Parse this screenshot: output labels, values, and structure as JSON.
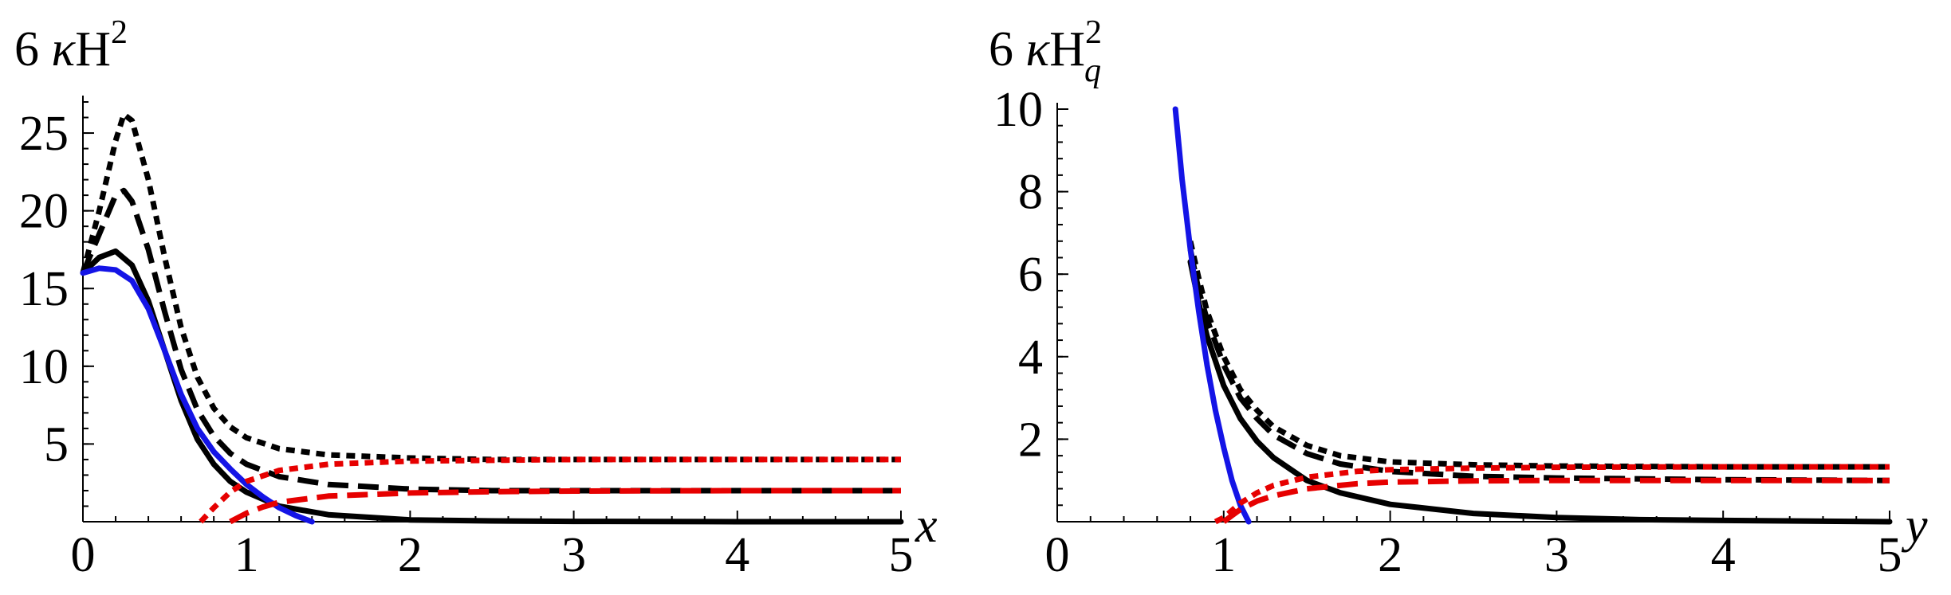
{
  "chart_data": [
    {
      "id": "left",
      "type": "line",
      "title": "",
      "ylabel": {
        "prefix": "6 ",
        "kappa": "κ",
        "main": "H",
        "sup": "2",
        "sub": ""
      },
      "xlabel": "x",
      "xlim": [
        0,
        5
      ],
      "ylim": [
        0,
        27
      ],
      "xticks": [
        "0",
        "1",
        "2",
        "3",
        "4",
        "5"
      ],
      "yticks": [
        "5",
        "10",
        "15",
        "20",
        "25"
      ],
      "series": [
        {
          "style": "solid-black",
          "color": "#000000",
          "x": [
            0,
            0.1,
            0.2,
            0.3,
            0.4,
            0.5,
            0.6,
            0.7,
            0.8,
            0.9,
            1.0,
            1.2,
            1.5,
            2.0,
            2.5,
            3.0,
            3.5,
            4.0,
            5.0
          ],
          "y": [
            16.0,
            17.0,
            17.4,
            16.5,
            14.2,
            11.0,
            7.8,
            5.3,
            3.7,
            2.6,
            1.9,
            1.0,
            0.45,
            0.12,
            0.05,
            0.02,
            0.01,
            0.0,
            0.0
          ]
        },
        {
          "style": "dashed-black",
          "color": "#000000",
          "x": [
            0,
            0.1,
            0.2,
            0.25,
            0.3,
            0.4,
            0.5,
            0.6,
            0.7,
            0.8,
            0.9,
            1.0,
            1.2,
            1.5,
            2.0,
            2.5,
            3.0,
            4.0,
            5.0
          ],
          "y": [
            16.0,
            18.5,
            21.0,
            21.3,
            20.6,
            17.5,
            13.5,
            9.8,
            7.2,
            5.5,
            4.4,
            3.7,
            2.9,
            2.4,
            2.1,
            2.0,
            2.0,
            2.0,
            2.0
          ]
        },
        {
          "style": "dotted-black",
          "color": "#000000",
          "x": [
            0,
            0.1,
            0.2,
            0.25,
            0.3,
            0.4,
            0.5,
            0.6,
            0.7,
            0.8,
            0.9,
            1.0,
            1.2,
            1.5,
            2.0,
            2.5,
            3.0,
            4.0,
            5.0
          ],
          "y": [
            16.0,
            20.0,
            24.5,
            26.2,
            25.8,
            22.0,
            17.0,
            12.5,
            9.3,
            7.3,
            6.1,
            5.4,
            4.7,
            4.3,
            4.1,
            4.0,
            4.0,
            4.0,
            4.0
          ]
        },
        {
          "style": "solid-blue",
          "color": "#1414e6",
          "x": [
            0,
            0.1,
            0.2,
            0.3,
            0.4,
            0.5,
            0.6,
            0.7,
            0.8,
            0.9,
            1.0,
            1.1,
            1.2,
            1.3,
            1.4
          ],
          "y": [
            16.0,
            16.3,
            16.2,
            15.5,
            13.7,
            11.0,
            8.2,
            6.0,
            4.5,
            3.4,
            2.4,
            1.6,
            0.9,
            0.4,
            0.0
          ]
        },
        {
          "style": "dotted-red",
          "color": "#e60000",
          "x": [
            0.72,
            0.8,
            0.9,
            1.0,
            1.2,
            1.5,
            2.0,
            2.5,
            3.0,
            4.0,
            5.0
          ],
          "y": [
            0.0,
            0.9,
            1.9,
            2.6,
            3.3,
            3.7,
            3.9,
            3.95,
            4.0,
            4.0,
            4.0
          ]
        },
        {
          "style": "dashed-red",
          "color": "#e60000",
          "x": [
            0.9,
            1.0,
            1.1,
            1.2,
            1.5,
            2.0,
            2.5,
            3.0,
            4.0,
            5.0
          ],
          "y": [
            0.0,
            0.55,
            0.95,
            1.25,
            1.65,
            1.85,
            1.93,
            1.97,
            2.0,
            2.0
          ]
        }
      ]
    },
    {
      "id": "right",
      "type": "line",
      "title": "",
      "ylabel": {
        "prefix": "6 ",
        "kappa": "κ",
        "main": "H",
        "sup": "2",
        "sub": "q"
      },
      "xlabel": "y",
      "xlim": [
        0,
        5
      ],
      "ylim": [
        0,
        10
      ],
      "xticks": [
        "0",
        "1",
        "2",
        "3",
        "4",
        "5"
      ],
      "yticks": [
        "2",
        "4",
        "6",
        "8",
        "10"
      ],
      "series": [
        {
          "style": "solid-black",
          "color": "#000000",
          "x": [
            0.8,
            0.85,
            0.9,
            1.0,
            1.1,
            1.2,
            1.3,
            1.5,
            1.7,
            2.0,
            2.5,
            3.0,
            3.5,
            4.0,
            5.0
          ],
          "y": [
            6.3,
            5.3,
            4.5,
            3.3,
            2.5,
            1.95,
            1.55,
            1.0,
            0.7,
            0.42,
            0.2,
            0.1,
            0.05,
            0.03,
            0.0
          ]
        },
        {
          "style": "dashed-black",
          "color": "#000000",
          "x": [
            0.8,
            0.85,
            0.9,
            1.0,
            1.1,
            1.2,
            1.3,
            1.5,
            1.7,
            2.0,
            2.5,
            3.0,
            4.0,
            5.0
          ],
          "y": [
            6.6,
            5.6,
            4.9,
            3.8,
            3.0,
            2.5,
            2.1,
            1.65,
            1.4,
            1.22,
            1.1,
            1.06,
            1.02,
            1.0
          ]
        },
        {
          "style": "dotted-black",
          "color": "#000000",
          "x": [
            0.8,
            0.85,
            0.9,
            1.0,
            1.1,
            1.2,
            1.3,
            1.5,
            1.7,
            2.0,
            2.5,
            3.0,
            4.0,
            5.0
          ],
          "y": [
            6.8,
            5.9,
            5.1,
            4.0,
            3.2,
            2.7,
            2.3,
            1.85,
            1.6,
            1.45,
            1.38,
            1.35,
            1.33,
            1.33
          ]
        },
        {
          "style": "solid-blue",
          "color": "#1414e6",
          "x": [
            0.71,
            0.75,
            0.8,
            0.85,
            0.9,
            0.95,
            1.0,
            1.05,
            1.1,
            1.15
          ],
          "y": [
            10.0,
            8.3,
            6.6,
            5.1,
            3.8,
            2.7,
            1.8,
            1.0,
            0.4,
            0.0
          ]
        },
        {
          "style": "dotted-red",
          "color": "#e60000",
          "x": [
            0.95,
            1.0,
            1.1,
            1.2,
            1.3,
            1.5,
            1.8,
            2.0,
            2.5,
            3.0,
            4.0,
            5.0
          ],
          "y": [
            0.0,
            0.1,
            0.45,
            0.7,
            0.88,
            1.08,
            1.22,
            1.26,
            1.3,
            1.32,
            1.33,
            1.33
          ]
        },
        {
          "style": "dashed-red",
          "color": "#e60000",
          "x": [
            1.0,
            1.05,
            1.1,
            1.2,
            1.3,
            1.5,
            1.8,
            2.0,
            2.5,
            3.0,
            4.0,
            5.0
          ],
          "y": [
            0.0,
            0.15,
            0.3,
            0.5,
            0.63,
            0.8,
            0.92,
            0.96,
            0.99,
            1.0,
            1.0,
            1.0
          ]
        }
      ]
    }
  ]
}
